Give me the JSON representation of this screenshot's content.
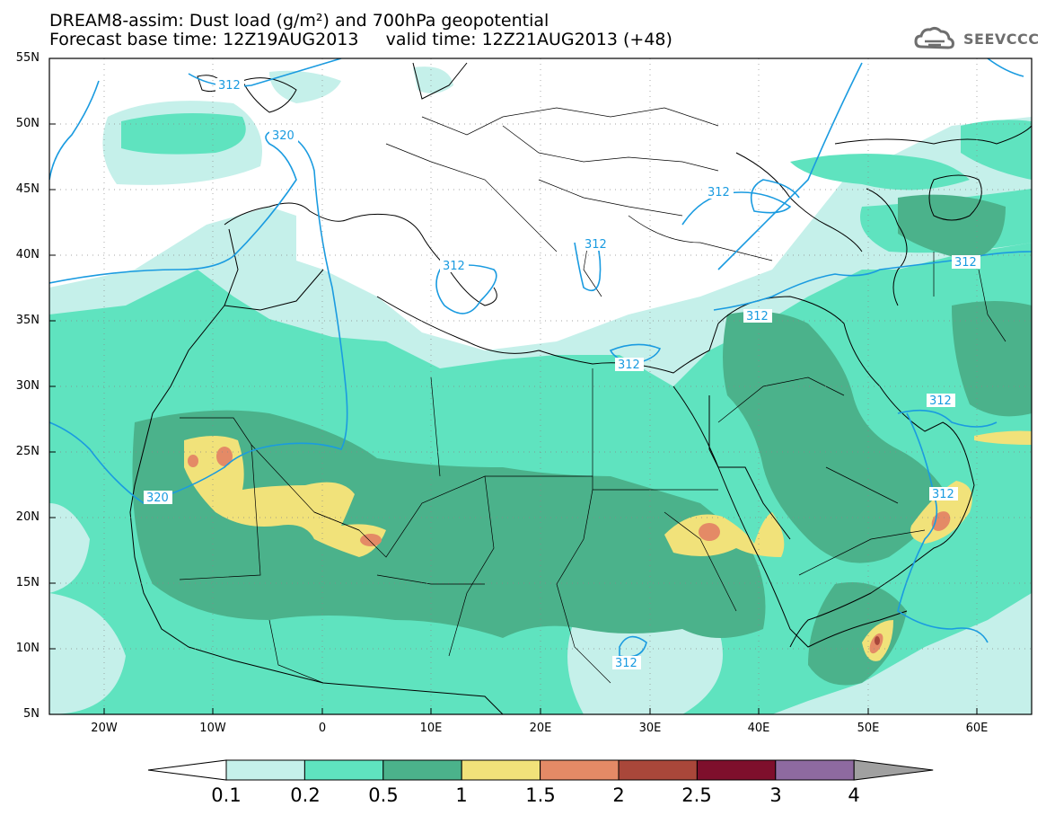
{
  "header": {
    "line1": "DREAM8-assim: Dust load (g/m²) and 700hPa geopotential",
    "line2": "Forecast base time: 12Z19AUG2013     valid time: 12Z21AUG2013 (+48)"
  },
  "logo": {
    "text": "SEEVCCC",
    "icon": "cloud-logo-icon"
  },
  "map": {
    "lat_ticks": [
      "55N",
      "50N",
      "45N",
      "40N",
      "35N",
      "30N",
      "25N",
      "20N",
      "15N",
      "10N",
      "5N"
    ],
    "lon_ticks": [
      "20W",
      "10W",
      "0",
      "10E",
      "20E",
      "30E",
      "40E",
      "50E",
      "60E"
    ],
    "contour_labels": [
      "312",
      "320",
      "312",
      "312",
      "312",
      "312",
      "312",
      "312",
      "312",
      "312",
      "312",
      "320"
    ]
  },
  "legend": {
    "labels": [
      "0.1",
      "0.2",
      "0.5",
      "1",
      "1.5",
      "2",
      "2.5",
      "3",
      "4"
    ],
    "colors": [
      "#c5f0ea",
      "#5fe3bf",
      "#4bb28b",
      "#f1e27a",
      "#e48a66",
      "#a9473a",
      "#7e0f2c",
      "#8e6aa0",
      "#a0a0a0"
    ]
  }
}
